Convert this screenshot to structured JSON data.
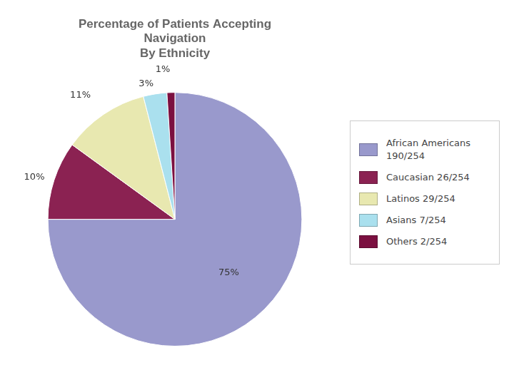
{
  "chart_data": {
    "type": "pie",
    "title": "Percentage of Patients Accepting\nNavigation\nBy Ethnicity",
    "categories": [
      "African Americans\n190/254",
      "Caucasian 26/254",
      "Latinos 29/254",
      "Asians 7/254",
      "Others 2/254"
    ],
    "values": [
      75,
      10,
      11,
      3,
      1
    ],
    "value_labels": [
      "75%",
      "10%",
      "11%",
      "3%",
      "1%"
    ],
    "colors": [
      "#9999cc",
      "#8b2252",
      "#e8e8b0",
      "#aae0ee",
      "#7b1040"
    ],
    "data_labels": true,
    "legend": "right"
  }
}
